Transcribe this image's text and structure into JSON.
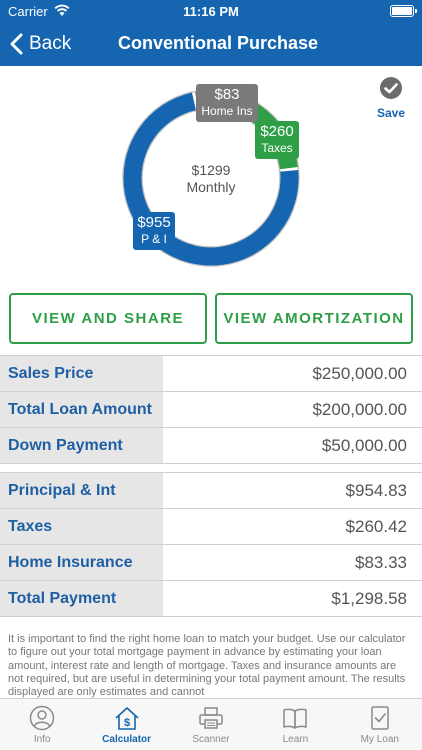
{
  "status_bar": {
    "carrier": "Carrier",
    "time": "11:16 PM"
  },
  "nav": {
    "back_label": "Back",
    "title": "Conventional Purchase"
  },
  "save_label": "Save",
  "chart_data": {
    "type": "pie",
    "center_label": [
      "$1299",
      "Monthly"
    ],
    "slices": [
      {
        "name": "P & I",
        "display_value": "$955",
        "value": 954.83,
        "color": "#1565b0"
      },
      {
        "name": "Taxes",
        "display_value": "$260",
        "value": 260.42,
        "color": "#2e9f46"
      },
      {
        "name": "Home Ins",
        "display_value": "$83",
        "value": 83.33,
        "color": "#7a7a7a"
      }
    ]
  },
  "buttons": {
    "view_share": "VIEW AND SHARE",
    "view_amortization": "VIEW AMORTIZATION"
  },
  "loan_table": [
    {
      "label": "Sales Price",
      "value": "$250,000.00"
    },
    {
      "label": "Total Loan Amount",
      "value": "$200,000.00"
    },
    {
      "label": "Down Payment",
      "value": "$50,000.00"
    }
  ],
  "payment_table": [
    {
      "label": "Principal & Int",
      "value": "$954.83"
    },
    {
      "label": "Taxes",
      "value": "$260.42"
    },
    {
      "label": "Home Insurance",
      "value": "$83.33"
    },
    {
      "label": "Total Payment",
      "value": "$1,298.58"
    }
  ],
  "disclaimer": "It is important to find the right home loan to match your budget. Use our calculator to figure out your total mortgage payment in advance by estimating your loan amount, interest rate and length of mortgage. Taxes and insurance amounts are not required, but are useful in determining your total payment amount. The results displayed are only estimates and cannot",
  "tabs": [
    {
      "label": "Info",
      "icon": "person-icon"
    },
    {
      "label": "Calculator",
      "icon": "house-dollar-icon",
      "active": true
    },
    {
      "label": "Scanner",
      "icon": "printer-icon"
    },
    {
      "label": "Learn",
      "icon": "book-icon"
    },
    {
      "label": "My Loan",
      "icon": "checklist-icon"
    }
  ],
  "colors": {
    "header": "#1565b0",
    "green": "#2e9f46",
    "label_blue": "#1f5fa3",
    "gray": "#7a7a7a"
  }
}
